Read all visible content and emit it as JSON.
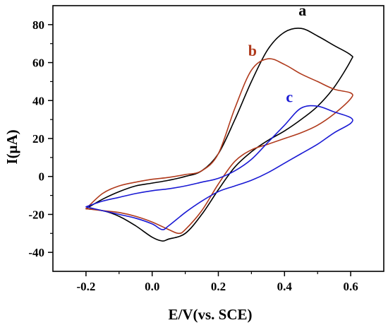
{
  "chart_data": {
    "type": "line",
    "xlabel": "E/V(vs. SCE)",
    "ylabel": "I(μA)",
    "xlim": [
      -0.3,
      0.7
    ],
    "ylim": [
      -50,
      90
    ],
    "xticks": [
      -0.2,
      0.0,
      0.2,
      0.4,
      0.6
    ],
    "yticks": [
      -40,
      -20,
      0,
      20,
      40,
      60,
      80
    ],
    "xtick_labels": [
      "-0.2",
      "0.0",
      "0.2",
      "0.4",
      "0.6"
    ],
    "ytick_labels": [
      "-40",
      "-20",
      "0",
      "20",
      "40",
      "60",
      "80"
    ],
    "grid": false,
    "series": [
      {
        "name": "a",
        "color": "#000000",
        "x": [
          -0.2,
          -0.15,
          -0.1,
          -0.05,
          0.0,
          0.05,
          0.1,
          0.15,
          0.2,
          0.25,
          0.3,
          0.35,
          0.4,
          0.45,
          0.5,
          0.55,
          0.6,
          0.6,
          0.55,
          0.5,
          0.45,
          0.4,
          0.35,
          0.3,
          0.25,
          0.2,
          0.15,
          0.1,
          0.05,
          0.03,
          0.0,
          -0.05,
          -0.1,
          -0.15,
          -0.2
        ],
        "y": [
          -17,
          -12,
          -8,
          -5,
          -3.5,
          -2,
          0,
          3,
          12,
          30,
          50,
          67,
          76,
          78,
          74,
          69,
          64,
          61,
          47,
          37,
          30,
          24,
          19,
          13,
          5,
          -7,
          -20,
          -30,
          -33,
          -34,
          -32,
          -26,
          -21,
          -18,
          -17
        ]
      },
      {
        "name": "b",
        "color": "#b03a1c",
        "x": [
          -0.2,
          -0.15,
          -0.1,
          -0.05,
          0.0,
          0.05,
          0.1,
          0.15,
          0.2,
          0.25,
          0.3,
          0.35,
          0.4,
          0.45,
          0.5,
          0.55,
          0.6,
          0.6,
          0.55,
          0.5,
          0.45,
          0.4,
          0.35,
          0.3,
          0.25,
          0.2,
          0.15,
          0.1,
          0.08,
          0.05,
          0.0,
          -0.05,
          -0.1,
          -0.15,
          -0.2
        ],
        "y": [
          -17,
          -9,
          -5,
          -3,
          -1.5,
          -0.5,
          1,
          3,
          12,
          36,
          56,
          62,
          59,
          54,
          50,
          46,
          44,
          41,
          33,
          27,
          23,
          20,
          17,
          14,
          8,
          -4,
          -18,
          -28,
          -30,
          -28,
          -24,
          -21,
          -19,
          -18,
          -17
        ]
      },
      {
        "name": "c",
        "color": "#1a1ad4",
        "x": [
          -0.2,
          -0.15,
          -0.1,
          -0.05,
          0.0,
          0.05,
          0.1,
          0.15,
          0.2,
          0.25,
          0.3,
          0.35,
          0.4,
          0.45,
          0.5,
          0.55,
          0.6,
          0.6,
          0.55,
          0.5,
          0.45,
          0.4,
          0.35,
          0.3,
          0.25,
          0.2,
          0.15,
          0.1,
          0.05,
          0.03,
          0.0,
          -0.05,
          -0.1,
          -0.15,
          -0.2
        ],
        "y": [
          -16,
          -13,
          -11,
          -9,
          -7.5,
          -6.5,
          -5,
          -3,
          -1,
          3,
          9,
          18,
          27,
          36,
          37,
          34,
          31,
          28,
          23,
          17,
          12,
          7,
          2,
          -2,
          -5,
          -8,
          -13,
          -19,
          -26,
          -28,
          -25,
          -22,
          -20,
          -18,
          -16
        ]
      }
    ]
  }
}
